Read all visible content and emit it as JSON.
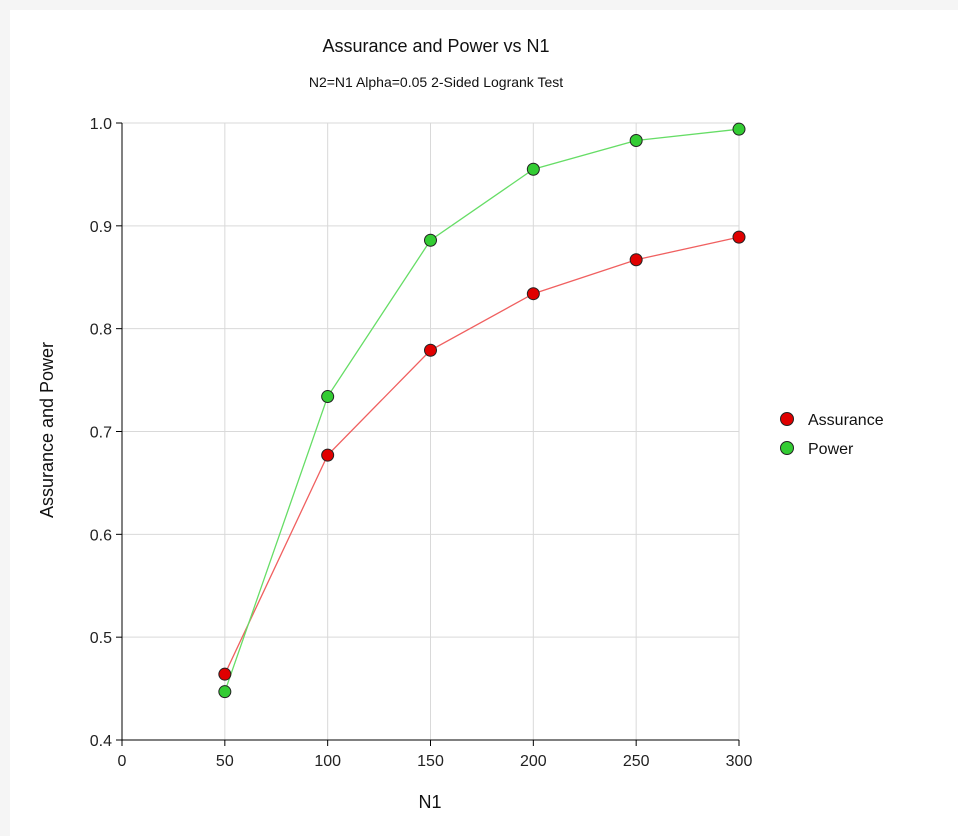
{
  "chart_data": {
    "type": "line",
    "title": "Assurance and Power vs N1",
    "subtitle": "N2=N1 Alpha=0.05 2-Sided Logrank Test",
    "xlabel": "N1",
    "ylabel": "Assurance and Power",
    "xlim": [
      0,
      300
    ],
    "ylim": [
      0.4,
      1.0
    ],
    "xticks": [
      0,
      50,
      100,
      150,
      200,
      250,
      300
    ],
    "yticks": [
      0.4,
      0.5,
      0.6,
      0.7,
      0.8,
      0.9,
      1.0
    ],
    "xtick_labels": [
      "0",
      "50",
      "100",
      "150",
      "200",
      "250",
      "300"
    ],
    "ytick_labels": [
      "0.4",
      "0.5",
      "0.6",
      "0.7",
      "0.8",
      "0.9",
      "1.0"
    ],
    "grid": true,
    "legend_position": "right",
    "x": [
      50,
      100,
      150,
      200,
      250,
      300
    ],
    "series": [
      {
        "name": "Assurance",
        "color": "#e00000",
        "line_color": "#f06060",
        "values": [
          0.464,
          0.677,
          0.779,
          0.834,
          0.867,
          0.889
        ]
      },
      {
        "name": "Power",
        "color": "#33cc33",
        "line_color": "#66dd66",
        "values": [
          0.447,
          0.734,
          0.886,
          0.955,
          0.983,
          0.994
        ]
      }
    ]
  }
}
